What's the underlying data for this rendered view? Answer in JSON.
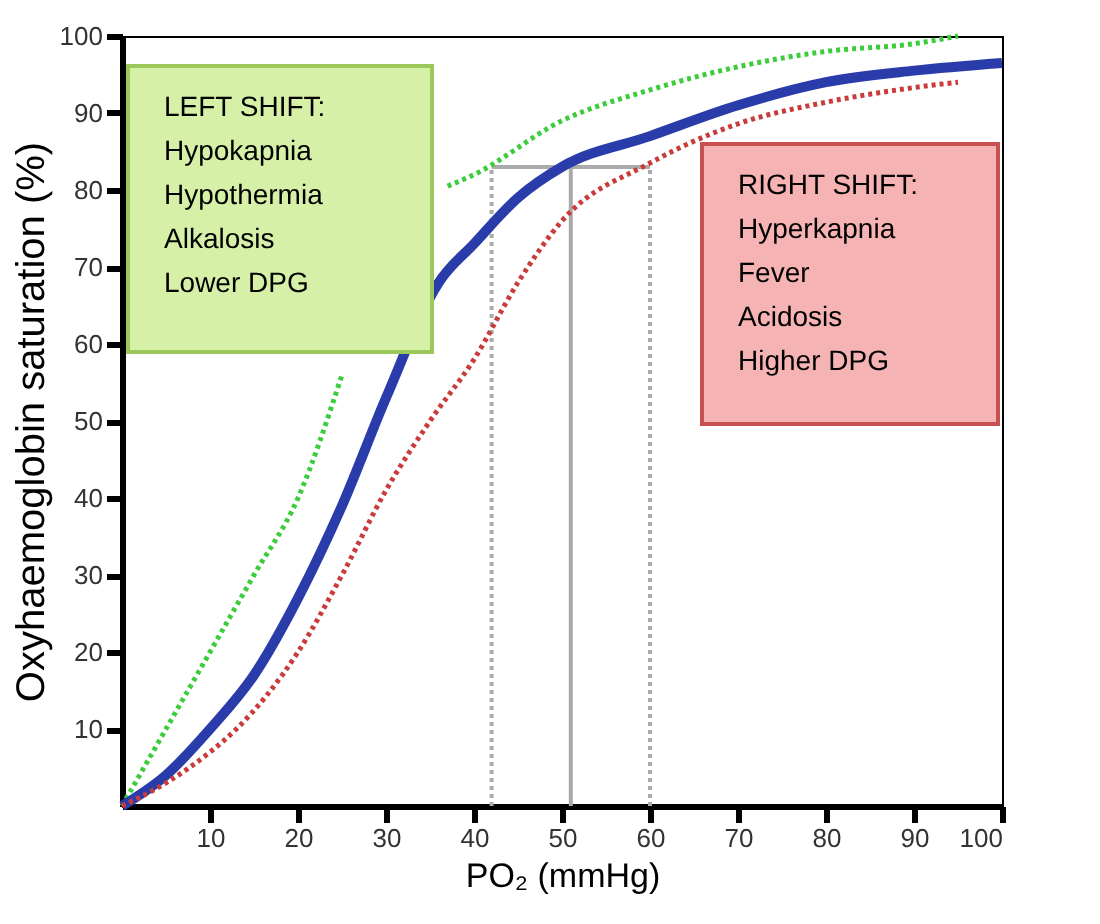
{
  "chart_data": {
    "type": "line",
    "xlabel": "PO₂ (mmHg)",
    "ylabel": "Oxyhaemoglobin saturation (%)",
    "xlim": [
      0,
      100
    ],
    "ylim": [
      0,
      100
    ],
    "xticks": [
      10,
      20,
      30,
      40,
      50,
      60,
      70,
      80,
      90,
      100
    ],
    "yticks": [
      10,
      20,
      30,
      40,
      50,
      60,
      70,
      80,
      90,
      100
    ],
    "grid": false,
    "series": [
      {
        "color": "#3ccc3c",
        "line_style": "dotted",
        "x": [
          0,
          5,
          10,
          15,
          20,
          25,
          30,
          37,
          40,
          50,
          60,
          70,
          80,
          90,
          95
        ],
        "values": [
          0,
          10,
          20,
          30,
          40,
          56,
          null,
          80.5,
          82,
          89,
          93,
          96,
          98,
          99,
          100
        ]
      },
      {
        "color": "#2a3caa",
        "line_style": "solid",
        "x": [
          0,
          5,
          10,
          15,
          20,
          25,
          30,
          36,
          40,
          45,
          50,
          60,
          70,
          80,
          90,
          100
        ],
        "values": [
          0,
          4,
          10,
          17,
          27,
          39,
          53,
          68,
          73,
          79,
          83,
          87,
          91,
          94,
          95.5,
          96.5
        ]
      },
      {
        "color": "#c83c3c",
        "line_style": "dotted",
        "x": [
          0,
          5,
          10,
          13,
          20,
          25,
          30,
          35,
          40,
          45,
          50,
          60,
          70,
          80,
          90,
          95
        ],
        "values": [
          0,
          3,
          7,
          10,
          20,
          30,
          41,
          50,
          58,
          68,
          76,
          83.5,
          88.6,
          91.4,
          93.3,
          94
        ]
      }
    ],
    "ref_lines": [
      {
        "axis": "x",
        "value": 42,
        "color": "#aaaaaa",
        "line_style": "dotted"
      },
      {
        "axis": "x",
        "value": 51,
        "color": "#aaaaaa",
        "line_style": "solid"
      },
      {
        "axis": "x",
        "value": 60,
        "color": "#aaaaaa",
        "line_style": "dotted"
      },
      {
        "axis": "y",
        "value": 83,
        "color": "#aaaaaa",
        "line_style": "solid"
      }
    ],
    "annotations": [
      "LEFT SHIFT:\nHypokapnia\nHypothermia\nAlkalosis\nLower DPG",
      "RIGHT SHIFT:\nHyperkapnia\nFever\nAcidosis\nHigher DPG"
    ]
  }
}
